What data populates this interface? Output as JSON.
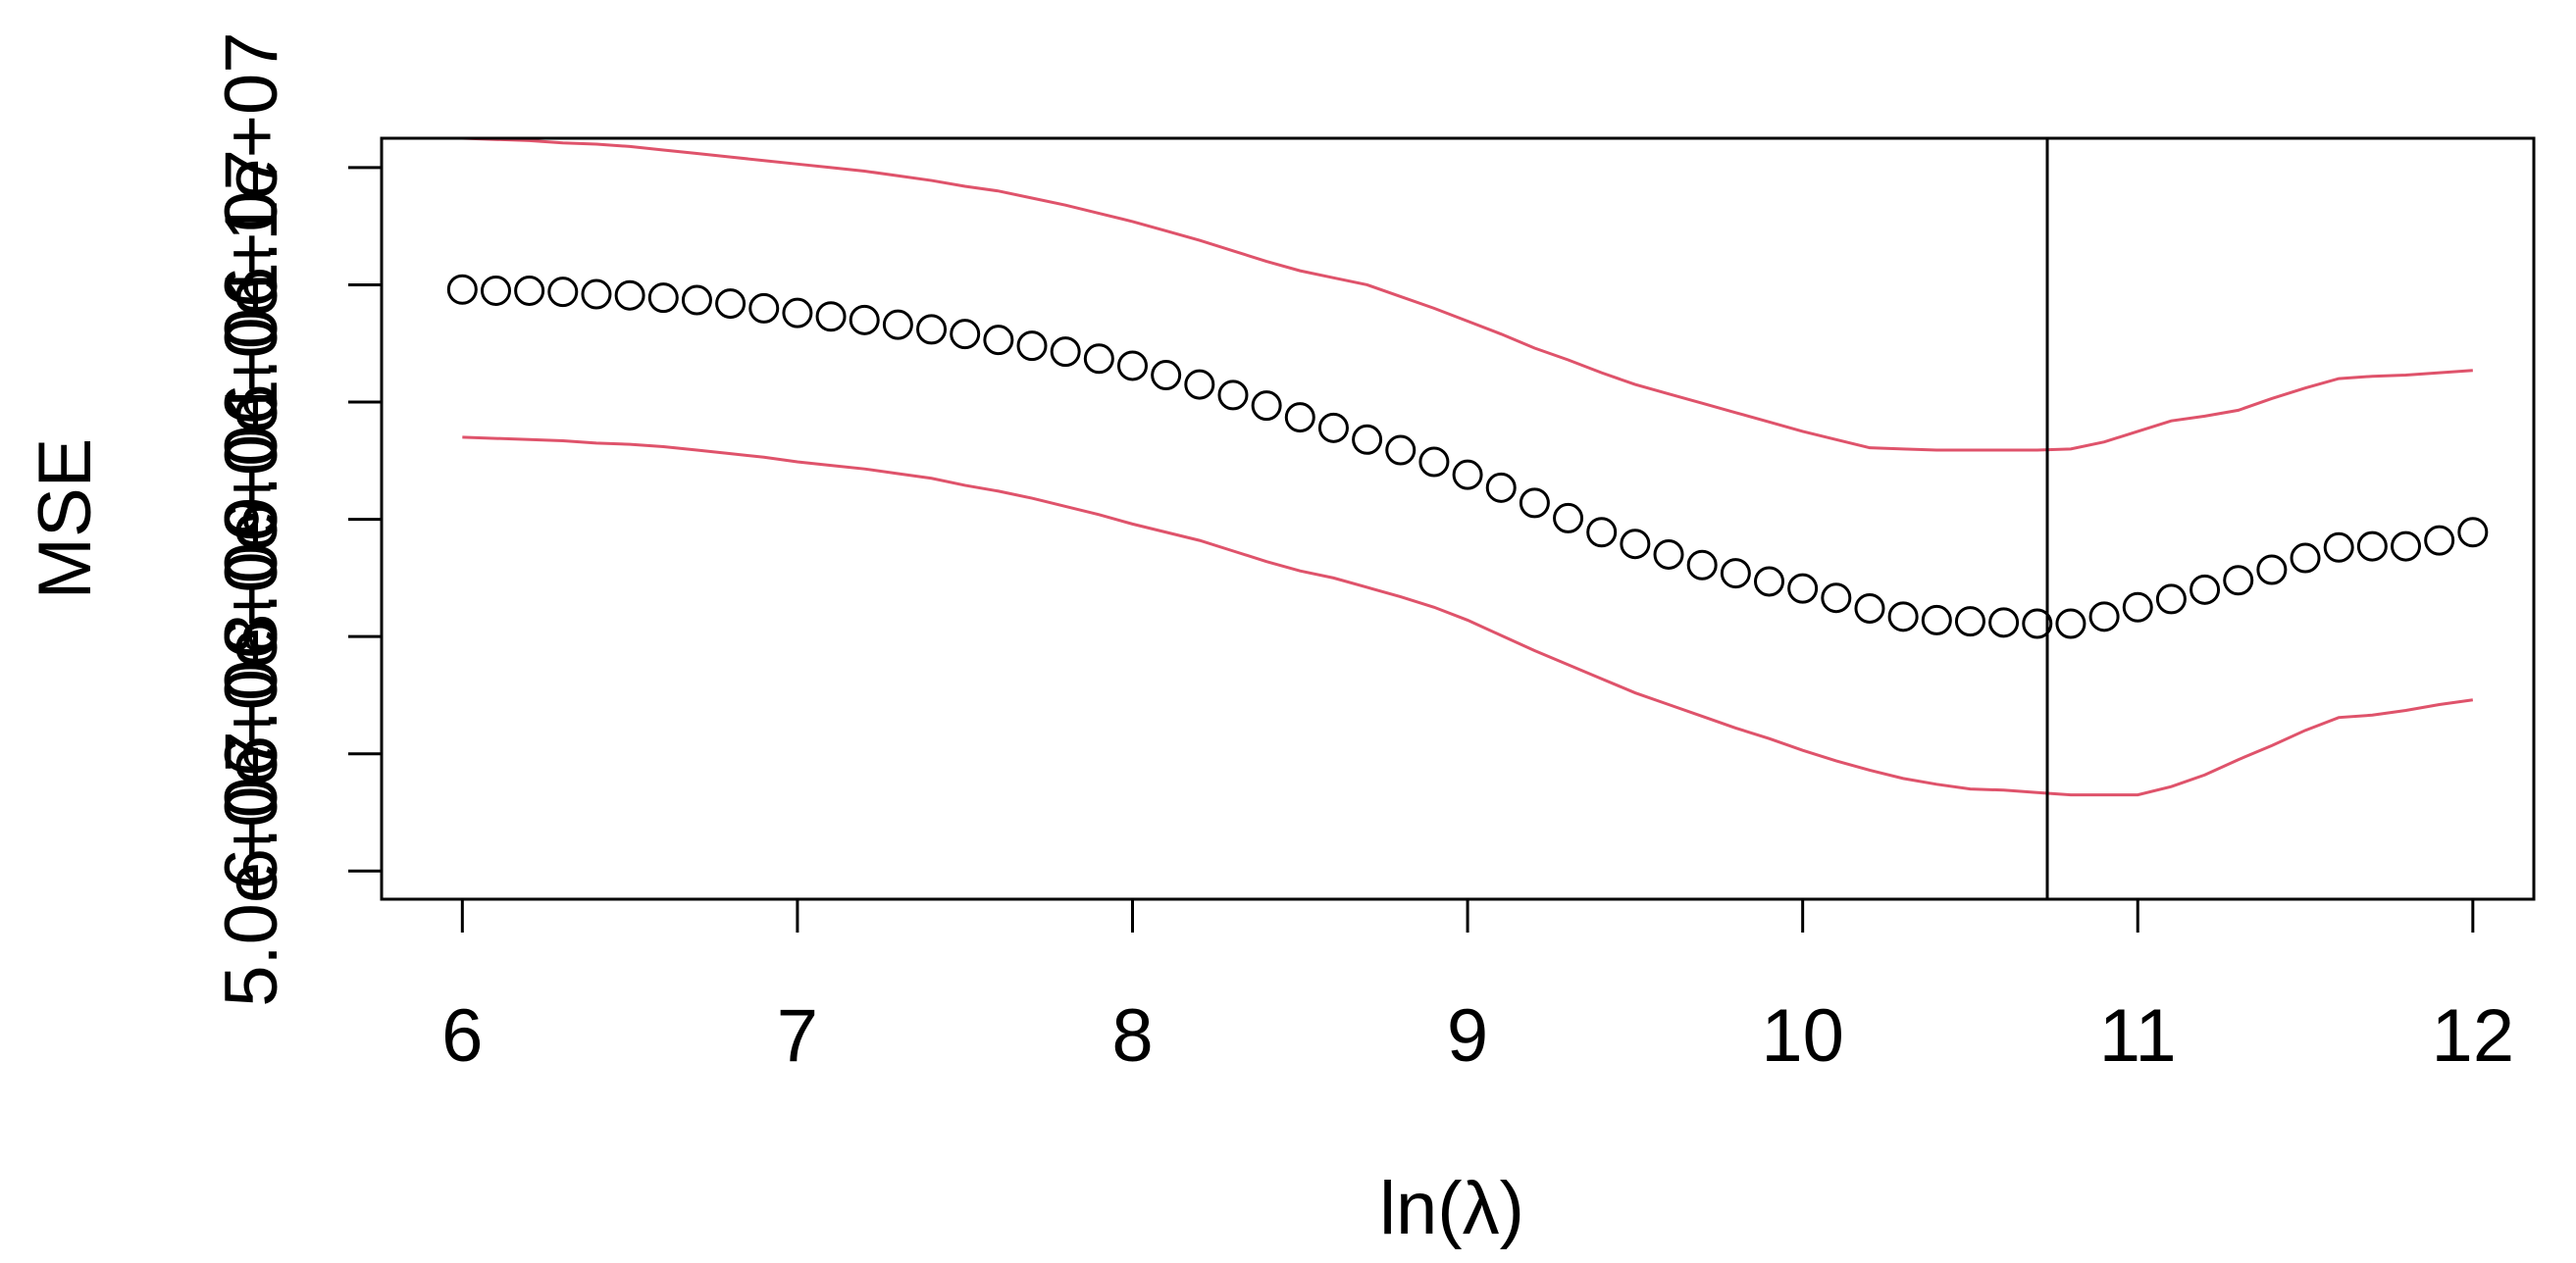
{
  "chart_data": {
    "type": "scatter",
    "x_label": "ln(λ)",
    "y_label": "MSE",
    "x": [
      6.0,
      6.1,
      6.2,
      6.3,
      6.4,
      6.5,
      6.6,
      6.7,
      6.8,
      6.9,
      7.0,
      7.1,
      7.2,
      7.3,
      7.4,
      7.5,
      7.6,
      7.7,
      7.8,
      7.9,
      8.0,
      8.1,
      8.2,
      8.3,
      8.4,
      8.5,
      8.6,
      8.7,
      8.8,
      8.9,
      9.0,
      9.1,
      9.2,
      9.3,
      9.4,
      9.5,
      9.6,
      9.7,
      9.8,
      9.9,
      10.0,
      10.1,
      10.2,
      10.3,
      10.4,
      10.5,
      10.6,
      10.7,
      10.8,
      10.9,
      11.0,
      11.1,
      11.2,
      11.3,
      11.4,
      11.5,
      11.6,
      11.7,
      11.8,
      11.9,
      12.0
    ],
    "series": [
      {
        "style": "points",
        "color": "#000000",
        "values": [
          9960000.0,
          9950000.0,
          9950000.0,
          9940000.0,
          9920000.0,
          9910000.0,
          9890000.0,
          9870000.0,
          9840000.0,
          9800000.0,
          9760000.0,
          9730000.0,
          9700000.0,
          9660000.0,
          9620000.0,
          9580000.0,
          9530000.0,
          9480000.0,
          9430000.0,
          9370000.0,
          9310000.0,
          9230000.0,
          9150000.0,
          9060000.0,
          8970000.0,
          8870000.0,
          8780000.0,
          8680000.0,
          8590000.0,
          8490000.0,
          8380000.0,
          8270000.0,
          8140000.0,
          8010000.0,
          7890000.0,
          7790000.0,
          7700000.0,
          7610000.0,
          7540000.0,
          7470000.0,
          7410000.0,
          7330000.0,
          7240000.0,
          7170000.0,
          7140000.0,
          7130000.0,
          7120000.0,
          7110000.0,
          7110000.0,
          7170000.0,
          7250000.0,
          7320000.0,
          7400000.0,
          7480000.0,
          7570000.0,
          7670000.0,
          7760000.0,
          7770000.0,
          7770000.0,
          7820000.0,
          7890000.0
        ]
      },
      {
        "style": "line",
        "color": "#df536b",
        "values": [
          11250000.0,
          11240000.0,
          11230000.0,
          11210000.0,
          11200000.0,
          11180000.0,
          11150000.0,
          11120000.0,
          11090000.0,
          11060000.0,
          11030000.0,
          11000000.0,
          10970000.0,
          10930000.0,
          10890000.0,
          10840000.0,
          10800000.0,
          10740000.0,
          10680000.0,
          10610000.0,
          10540000.0,
          10460000.0,
          10380000.0,
          10290000.0,
          10200000.0,
          10120000.0,
          10060000.0,
          10000000.0,
          9900000.0,
          9800000.0,
          9690000.0,
          9580000.0,
          9460000.0,
          9360000.0,
          9250000.0,
          9150000.0,
          9070000.0,
          8990000.0,
          8910000.0,
          8830000.0,
          8750000.0,
          8680000.0,
          8610000.0,
          8600000.0,
          8590000.0,
          8590000.0,
          8590000.0,
          8590000.0,
          8600000.0,
          8660000.0,
          8750000.0,
          8840000.0,
          8880000.0,
          8930000.0,
          9030000.0,
          9120000.0,
          9200000.0,
          9220000.0,
          9230000.0,
          9250000.0,
          9270000.0
        ]
      },
      {
        "style": "line",
        "color": "#df536b",
        "values": [
          8700000.0,
          8690000.0,
          8680000.0,
          8670000.0,
          8650000.0,
          8640000.0,
          8620000.0,
          8590000.0,
          8560000.0,
          8530000.0,
          8490000.0,
          8460000.0,
          8430000.0,
          8390000.0,
          8350000.0,
          8290000.0,
          8240000.0,
          8180000.0,
          8110000.0,
          8040000.0,
          7960000.0,
          7890000.0,
          7820000.0,
          7730000.0,
          7640000.0,
          7560000.0,
          7500000.0,
          7420000.0,
          7340000.0,
          7250000.0,
          7140000.0,
          7010000.0,
          6880000.0,
          6760000.0,
          6640000.0,
          6520000.0,
          6420000.0,
          6320000.0,
          6220000.0,
          6130000.0,
          6030000.0,
          5940000.0,
          5860000.0,
          5790000.0,
          5740000.0,
          5700000.0,
          5690000.0,
          5670000.0,
          5650000.0,
          5650000.0,
          5650000.0,
          5720000.0,
          5820000.0,
          5950000.0,
          6070000.0,
          6200000.0,
          6310000.0,
          6330000.0,
          6370000.0,
          6420000.0,
          6460000.0
        ]
      }
    ],
    "vline": 10.73,
    "xlim": [
      5.759,
      12.182
    ],
    "xticks": [
      6,
      7,
      8,
      9,
      10,
      11,
      12
    ],
    "ylim": [
      4760000.0,
      11250000.0
    ],
    "yticks": [
      {
        "value": 5000000,
        "label": "5.0e+06"
      },
      {
        "value": 6000000,
        "label": "6.0e+06"
      },
      {
        "value": 7000000,
        "label": "7.0e+06"
      },
      {
        "value": 8000000,
        "label": "8.0e+06"
      },
      {
        "value": 9000000,
        "label": "9.0e+06"
      },
      {
        "value": 10000000,
        "label": "1.0e+07"
      },
      {
        "value": 11000000,
        "label": "1.1e+07"
      }
    ],
    "grid": false
  }
}
